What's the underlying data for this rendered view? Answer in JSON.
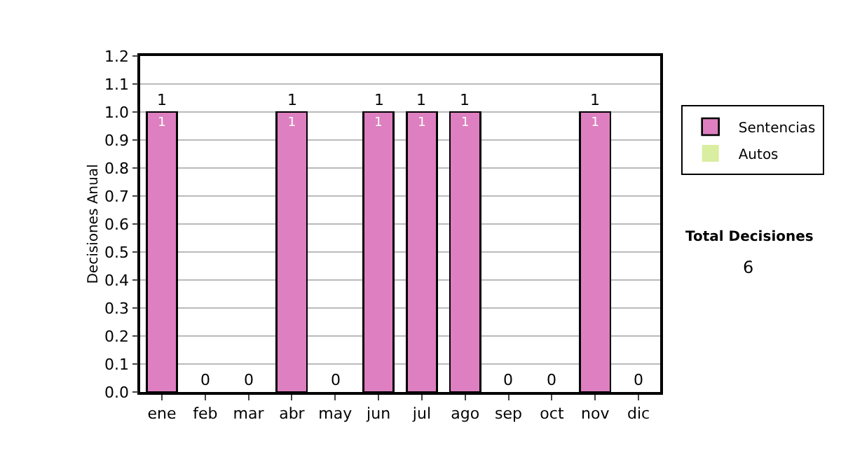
{
  "chart_data": {
    "type": "bar",
    "stacked": true,
    "ylabel": "Decisiones Anual",
    "categories": [
      "ene",
      "feb",
      "mar",
      "abr",
      "may",
      "jun",
      "jul",
      "ago",
      "sep",
      "oct",
      "nov",
      "dic"
    ],
    "series": [
      {
        "name": "Sentencias",
        "color": "#dd7fc0",
        "values": [
          1,
          0,
          0,
          1,
          0,
          1,
          1,
          1,
          0,
          0,
          1,
          0
        ],
        "value_labels": [
          "1",
          null,
          null,
          "1",
          null,
          "1",
          "1",
          "1",
          null,
          null,
          "1",
          null
        ]
      },
      {
        "name": "Autos",
        "color": "#d9eea0",
        "values": [
          0,
          0,
          0,
          0,
          0,
          0,
          0,
          0,
          0,
          0,
          0,
          0
        ]
      }
    ],
    "totals": [
      "1",
      "0",
      "0",
      "1",
      "0",
      "1",
      "1",
      "1",
      "0",
      "0",
      "1",
      "0"
    ],
    "ylim": [
      0,
      1.2
    ],
    "yticks": [
      {
        "value": 0,
        "label": "0.0"
      },
      {
        "value": 0.1,
        "label": "0.1"
      },
      {
        "value": 0.2,
        "label": "0.2"
      },
      {
        "value": 0.3,
        "label": "0.3"
      },
      {
        "value": 0.4,
        "label": "0.4"
      },
      {
        "value": 0.5,
        "label": "0.5"
      },
      {
        "value": 0.6,
        "label": "0.6"
      },
      {
        "value": 0.7,
        "label": "0.7"
      },
      {
        "value": 0.8,
        "label": "0.8"
      },
      {
        "value": 0.9,
        "label": "0.9"
      },
      {
        "value": 1,
        "label": "1.0"
      },
      {
        "value": 1.1,
        "label": "1.1"
      },
      {
        "value": 1.2,
        "label": "1.2"
      }
    ],
    "grid": "y",
    "legend": "right",
    "annotations": [
      "Total Decisiones",
      "6"
    ]
  }
}
